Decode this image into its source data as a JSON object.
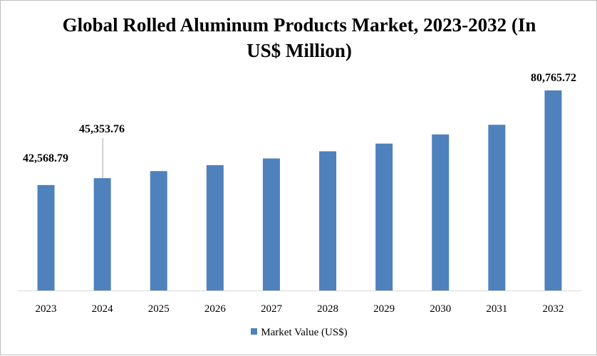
{
  "chart_data": {
    "type": "bar",
    "title": "Global Rolled Aluminum Products Market, 2023-2032 (In US$ Million)",
    "categories": [
      "2023",
      "2024",
      "2025",
      "2026",
      "2027",
      "2028",
      "2029",
      "2030",
      "2031",
      "2032"
    ],
    "series": [
      {
        "name": "Market Value (US$)",
        "values": [
          42568.79,
          45353.76,
          48200,
          50600,
          53300,
          56200,
          59300,
          63000,
          66900,
          80765.72
        ]
      }
    ],
    "data_labels": [
      "42,568.79",
      "45,353.76",
      "",
      "",
      "",
      "",
      "",
      "",
      "",
      "80,765.72"
    ],
    "ylim": [
      0,
      88000
    ],
    "grid": false,
    "legend_position": "bottom",
    "colors": {
      "bar": "#4f81bd",
      "axis": "#d9d9d9",
      "label_leader": "#a6a6a6"
    }
  }
}
